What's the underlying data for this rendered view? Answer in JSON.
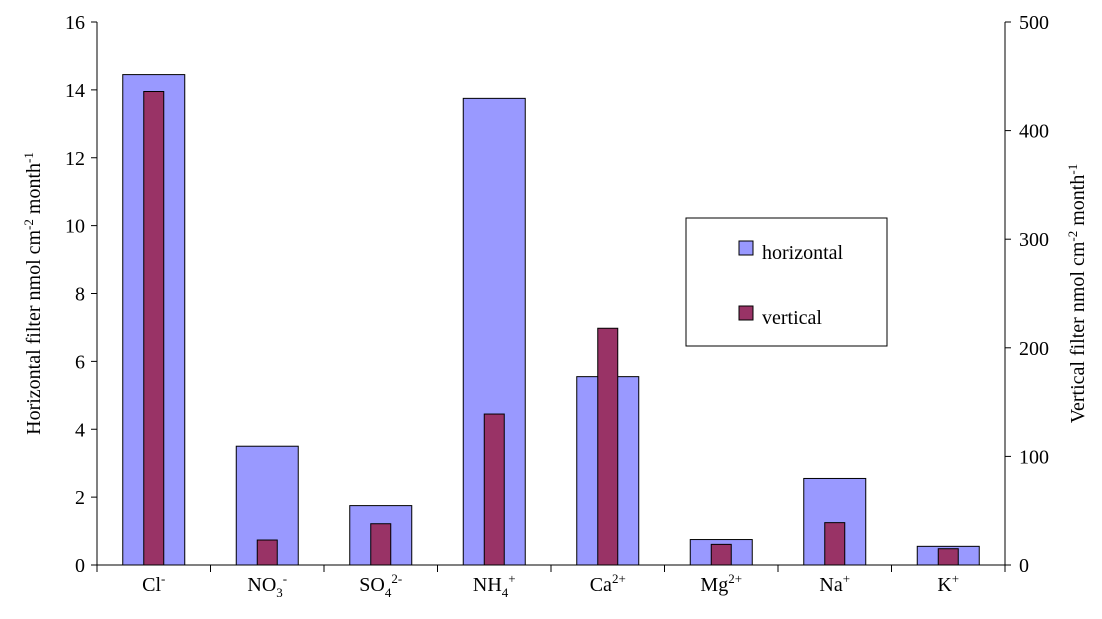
{
  "chart_data": {
    "type": "bar",
    "categories": [
      {
        "base": "Cl",
        "sub": "",
        "sup": "-"
      },
      {
        "base": "NO",
        "sub": "3",
        "sup": "-"
      },
      {
        "base": "SO",
        "sub": "4",
        "sup": "2-"
      },
      {
        "base": "NH",
        "sub": "4",
        "sup": "+"
      },
      {
        "base": "Ca",
        "sub": "",
        "sup": "2+"
      },
      {
        "base": "Mg",
        "sub": "",
        "sup": "2+"
      },
      {
        "base": "Na",
        "sub": "",
        "sup": "+"
      },
      {
        "base": "K",
        "sub": "",
        "sup": "+"
      }
    ],
    "series": [
      {
        "name": "horizontal",
        "axis": "left",
        "color": "#9999ff",
        "values": [
          14.45,
          3.5,
          1.75,
          13.75,
          5.55,
          0.75,
          2.55,
          0.55
        ]
      },
      {
        "name": "vertical",
        "axis": "right",
        "color": "#993366",
        "values": [
          436,
          23,
          38,
          139,
          218,
          19,
          39,
          15
        ]
      }
    ],
    "y_left": {
      "label": {
        "parts": [
          {
            "t": "Horizontal filter nmol cm"
          },
          {
            "t": "-2",
            "sup": true
          },
          {
            "t": " month"
          },
          {
            "t": "-1",
            "sup": true
          }
        ]
      },
      "min": 0,
      "max": 16,
      "ticks": [
        "0",
        "2",
        "4",
        "6",
        "8",
        "10",
        "12",
        "14",
        "16"
      ]
    },
    "y_right": {
      "label": {
        "parts": [
          {
            "t": "Vertical filter nmol cm"
          },
          {
            "t": "-2",
            "sup": true
          },
          {
            "t": " month"
          },
          {
            "t": "-1",
            "sup": true
          }
        ]
      },
      "min": 0,
      "max": 500,
      "ticks": [
        "0",
        "100",
        "200",
        "300",
        "400",
        "500"
      ]
    },
    "legend": {
      "position": "right",
      "entries": [
        "horizontal",
        "vertical"
      ]
    },
    "grid": false
  }
}
